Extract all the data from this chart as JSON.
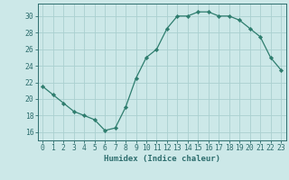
{
  "x": [
    0,
    1,
    2,
    3,
    4,
    5,
    6,
    7,
    8,
    9,
    10,
    11,
    12,
    13,
    14,
    15,
    16,
    17,
    18,
    19,
    20,
    21,
    22,
    23
  ],
  "y": [
    21.5,
    20.5,
    19.5,
    18.5,
    18.0,
    17.5,
    16.2,
    16.5,
    19.0,
    22.5,
    25.0,
    26.0,
    28.5,
    30.0,
    30.0,
    30.5,
    30.5,
    30.0,
    30.0,
    29.5,
    28.5,
    27.5,
    25.0,
    23.5
  ],
  "line_color": "#2e7d6e",
  "marker": "D",
  "marker_size": 2.2,
  "bg_color": "#cce8e8",
  "grid_color": "#aad0d0",
  "xlabel": "Humidex (Indice chaleur)",
  "xlim": [
    -0.5,
    23.5
  ],
  "ylim": [
    15.0,
    31.5
  ],
  "yticks": [
    16,
    18,
    20,
    22,
    24,
    26,
    28,
    30
  ],
  "xticks": [
    0,
    1,
    2,
    3,
    4,
    5,
    6,
    7,
    8,
    9,
    10,
    11,
    12,
    13,
    14,
    15,
    16,
    17,
    18,
    19,
    20,
    21,
    22,
    23
  ],
  "tick_color": "#2e6e6e",
  "label_fontsize": 6.5,
  "tick_fontsize": 5.8
}
